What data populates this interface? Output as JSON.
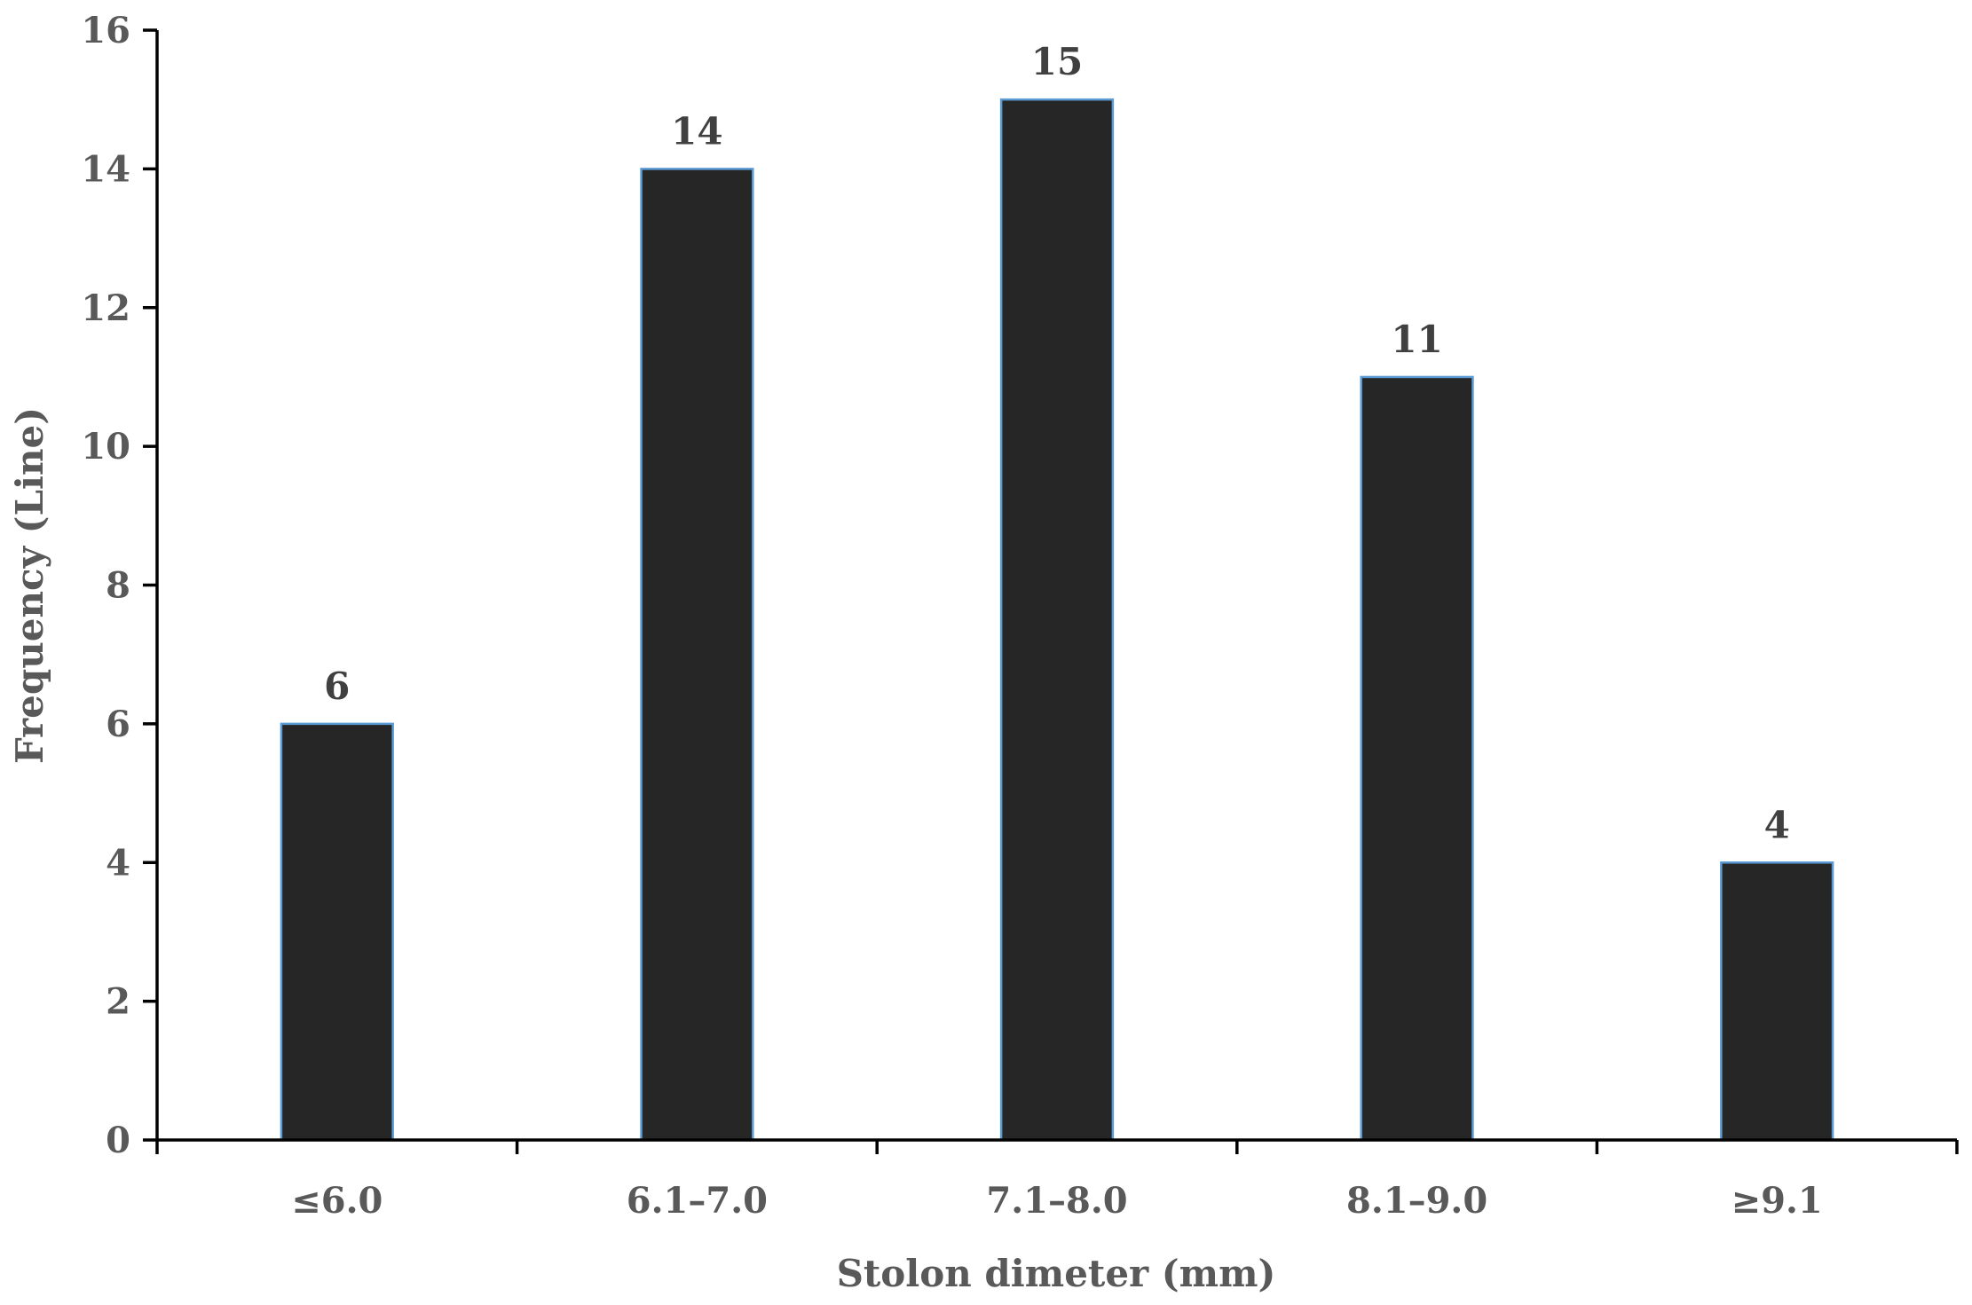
{
  "chart_data": {
    "type": "bar",
    "title": "",
    "xlabel": "Stolon dimeter (mm)",
    "ylabel": "Frequency (Line)",
    "categories": [
      "≤6.0",
      "6.1–7.0",
      "7.1–8.0",
      "8.1–9.0",
      "≥9.1"
    ],
    "values": [
      6,
      14,
      15,
      11,
      4
    ],
    "ylim": [
      0,
      16
    ],
    "yticks": [
      0,
      2,
      4,
      6,
      8,
      10,
      12,
      14,
      16
    ],
    "grid": false,
    "legend": "none",
    "bar_color": "#262626",
    "bar_edge_color": "#5b9bd5",
    "axis_color": "#000000"
  }
}
